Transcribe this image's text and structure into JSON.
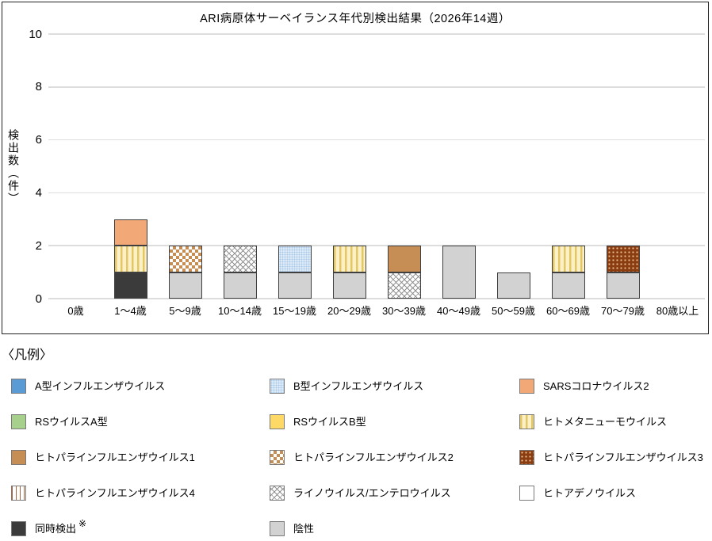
{
  "legend": {
    "heading": "〈凡例〉"
  },
  "chart_data": {
    "type": "bar",
    "stacked": true,
    "title": "ARI病原体サーベイランス年代別検出結果（2026年14週）",
    "ylabel": "検出数（件）",
    "xlabel": "",
    "ylim": [
      0,
      10
    ],
    "yticks": [
      0,
      2,
      4,
      6,
      8,
      10
    ],
    "grid": true,
    "legend_position": "below",
    "categories": [
      "0歳",
      "1～4歳",
      "5～9歳",
      "10～14歳",
      "15～19歳",
      "20～29歳",
      "30～39歳",
      "40～49歳",
      "50～59歳",
      "60～69歳",
      "70～79歳",
      "80歳以上"
    ],
    "series": [
      {
        "name": "A型インフルエンザウイルス",
        "id": "flu-a",
        "color": "#5B9BD5",
        "pattern": "solid",
        "values": [
          0,
          0,
          0,
          0,
          0,
          0,
          0,
          0,
          0,
          0,
          0,
          0
        ]
      },
      {
        "name": "B型インフルエンザウイルス",
        "id": "flu-b",
        "color": "#DCE9F6",
        "pattern": "fine-dots",
        "values": [
          0,
          0,
          0,
          0,
          1,
          0,
          0,
          0,
          0,
          0,
          0,
          0
        ]
      },
      {
        "name": "SARSコロナウイルス2",
        "id": "sars-cov-2",
        "color": "#F2A977",
        "pattern": "solid",
        "values": [
          0,
          1,
          0,
          0,
          0,
          0,
          0,
          0,
          0,
          0,
          0,
          0
        ]
      },
      {
        "name": "RSウイルスA型",
        "id": "rsv-a",
        "color": "#A8D08D",
        "pattern": "solid",
        "values": [
          0,
          0,
          0,
          0,
          0,
          0,
          0,
          0,
          0,
          0,
          0,
          0
        ]
      },
      {
        "name": "RSウイルスB型",
        "id": "rsv-b",
        "color": "#FFD966",
        "pattern": "solid",
        "values": [
          0,
          0,
          0,
          0,
          0,
          0,
          0,
          0,
          0,
          0,
          0,
          0
        ]
      },
      {
        "name": "ヒトメタニューモウイルス",
        "id": "hmpv",
        "color": "#E3C765",
        "pattern": "vertical-stripes-yellow",
        "values": [
          0,
          1,
          0,
          0,
          0,
          1,
          0,
          0,
          0,
          1,
          0,
          0
        ]
      },
      {
        "name": "ヒトパラインフルエンザウイルス1",
        "id": "piv1",
        "color": "#C68E54",
        "pattern": "solid",
        "values": [
          0,
          0,
          0,
          0,
          0,
          0,
          1,
          0,
          0,
          0,
          0,
          0
        ]
      },
      {
        "name": "ヒトパラインフルエンザウイルス2",
        "id": "piv2",
        "color": "#C68E54",
        "pattern": "checkerboard",
        "values": [
          0,
          0,
          1,
          0,
          0,
          0,
          0,
          0,
          0,
          0,
          0,
          0
        ]
      },
      {
        "name": "ヒトパラインフルエンザウイルス3",
        "id": "piv3",
        "color": "#8A3D10",
        "pattern": "dots-on-dark",
        "values": [
          0,
          0,
          0,
          0,
          0,
          0,
          0,
          0,
          0,
          0,
          1,
          0
        ]
      },
      {
        "name": "ヒトパラインフルエンザウイルス4",
        "id": "piv4",
        "color": "#A9663C",
        "pattern": "vertical-stripes-brown",
        "values": [
          0,
          0,
          0,
          0,
          0,
          0,
          0,
          0,
          0,
          0,
          0,
          0
        ]
      },
      {
        "name": "ライノウイルス/エンテロウイルス",
        "id": "rhino-entero",
        "color": "#919191",
        "pattern": "diamond-crosshatch",
        "values": [
          0,
          0,
          0,
          1,
          0,
          0,
          1,
          0,
          0,
          0,
          0,
          0
        ]
      },
      {
        "name": "ヒトアデノウイルス",
        "id": "adeno",
        "color": "#FFFFFF",
        "pattern": "empty",
        "values": [
          0,
          0,
          0,
          0,
          0,
          0,
          0,
          0,
          0,
          0,
          0,
          0
        ]
      },
      {
        "name": "同時検出",
        "id": "co-detection",
        "color": "#3B3B3B",
        "pattern": "solid",
        "note_mark": "※",
        "values": [
          0,
          1,
          0,
          0,
          0,
          0,
          0,
          0,
          0,
          0,
          0,
          0
        ]
      },
      {
        "name": "陰性",
        "id": "negative",
        "color": "#D2D2D2",
        "pattern": "solid",
        "values": [
          0,
          0,
          1,
          1,
          1,
          1,
          0,
          2,
          1,
          1,
          1,
          0
        ]
      }
    ]
  }
}
